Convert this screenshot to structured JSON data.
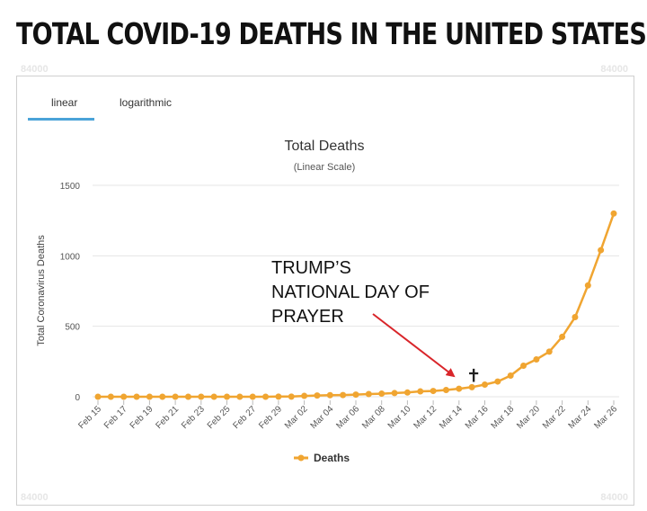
{
  "headline": "TOTAL COVID-19 DEATHS IN THE UNITED STATES:",
  "tabs": [
    "linear",
    "logarithmic"
  ],
  "watermarks": [
    "84000",
    "84000",
    "84000",
    "84000"
  ],
  "annotation": {
    "lines": [
      "TRUMP’S",
      "NATIONAL DAY OF",
      "PRAYER"
    ],
    "cross_glyph": "✝",
    "arrow_color": "#d9252a"
  },
  "chart_data": {
    "type": "line",
    "title": "Total Deaths",
    "subtitle": "(Linear Scale)",
    "xlabel": "",
    "ylabel": "Total Coronavirus Deaths",
    "ylim": [
      0,
      1500
    ],
    "yticks": [
      0,
      500,
      1000,
      1500
    ],
    "xtick_labels": [
      "Feb 15",
      "Feb 17",
      "Feb 19",
      "Feb 21",
      "Feb 23",
      "Feb 25",
      "Feb 27",
      "Feb 29",
      "Mar 02",
      "Mar 04",
      "Mar 06",
      "Mar 08",
      "Mar 10",
      "Mar 12",
      "Mar 14",
      "Mar 16",
      "Mar 18",
      "Mar 20",
      "Mar 22",
      "Mar 24",
      "Mar 26"
    ],
    "x": [
      "Feb 15",
      "Feb 16",
      "Feb 17",
      "Feb 18",
      "Feb 19",
      "Feb 20",
      "Feb 21",
      "Feb 22",
      "Feb 23",
      "Feb 24",
      "Feb 25",
      "Feb 26",
      "Feb 27",
      "Feb 28",
      "Feb 29",
      "Mar 01",
      "Mar 02",
      "Mar 03",
      "Mar 04",
      "Mar 05",
      "Mar 06",
      "Mar 07",
      "Mar 08",
      "Mar 09",
      "Mar 10",
      "Mar 11",
      "Mar 12",
      "Mar 13",
      "Mar 14",
      "Mar 15",
      "Mar 16",
      "Mar 17",
      "Mar 18",
      "Mar 19",
      "Mar 20",
      "Mar 21",
      "Mar 22",
      "Mar 23",
      "Mar 24",
      "Mar 25",
      "Mar 26"
    ],
    "series": [
      {
        "name": "Deaths",
        "color": "#f0a531",
        "values": [
          0,
          0,
          0,
          0,
          0,
          0,
          0,
          0,
          0,
          0,
          0,
          0,
          0,
          0,
          1,
          1,
          6,
          9,
          11,
          12,
          15,
          19,
          22,
          26,
          30,
          38,
          41,
          48,
          57,
          68,
          86,
          108,
          150,
          220,
          265,
          320,
          425,
          565,
          790,
          1040,
          1300
        ]
      }
    ],
    "annotation_date": "Mar 15",
    "legend_position": "bottom",
    "grid": true
  }
}
